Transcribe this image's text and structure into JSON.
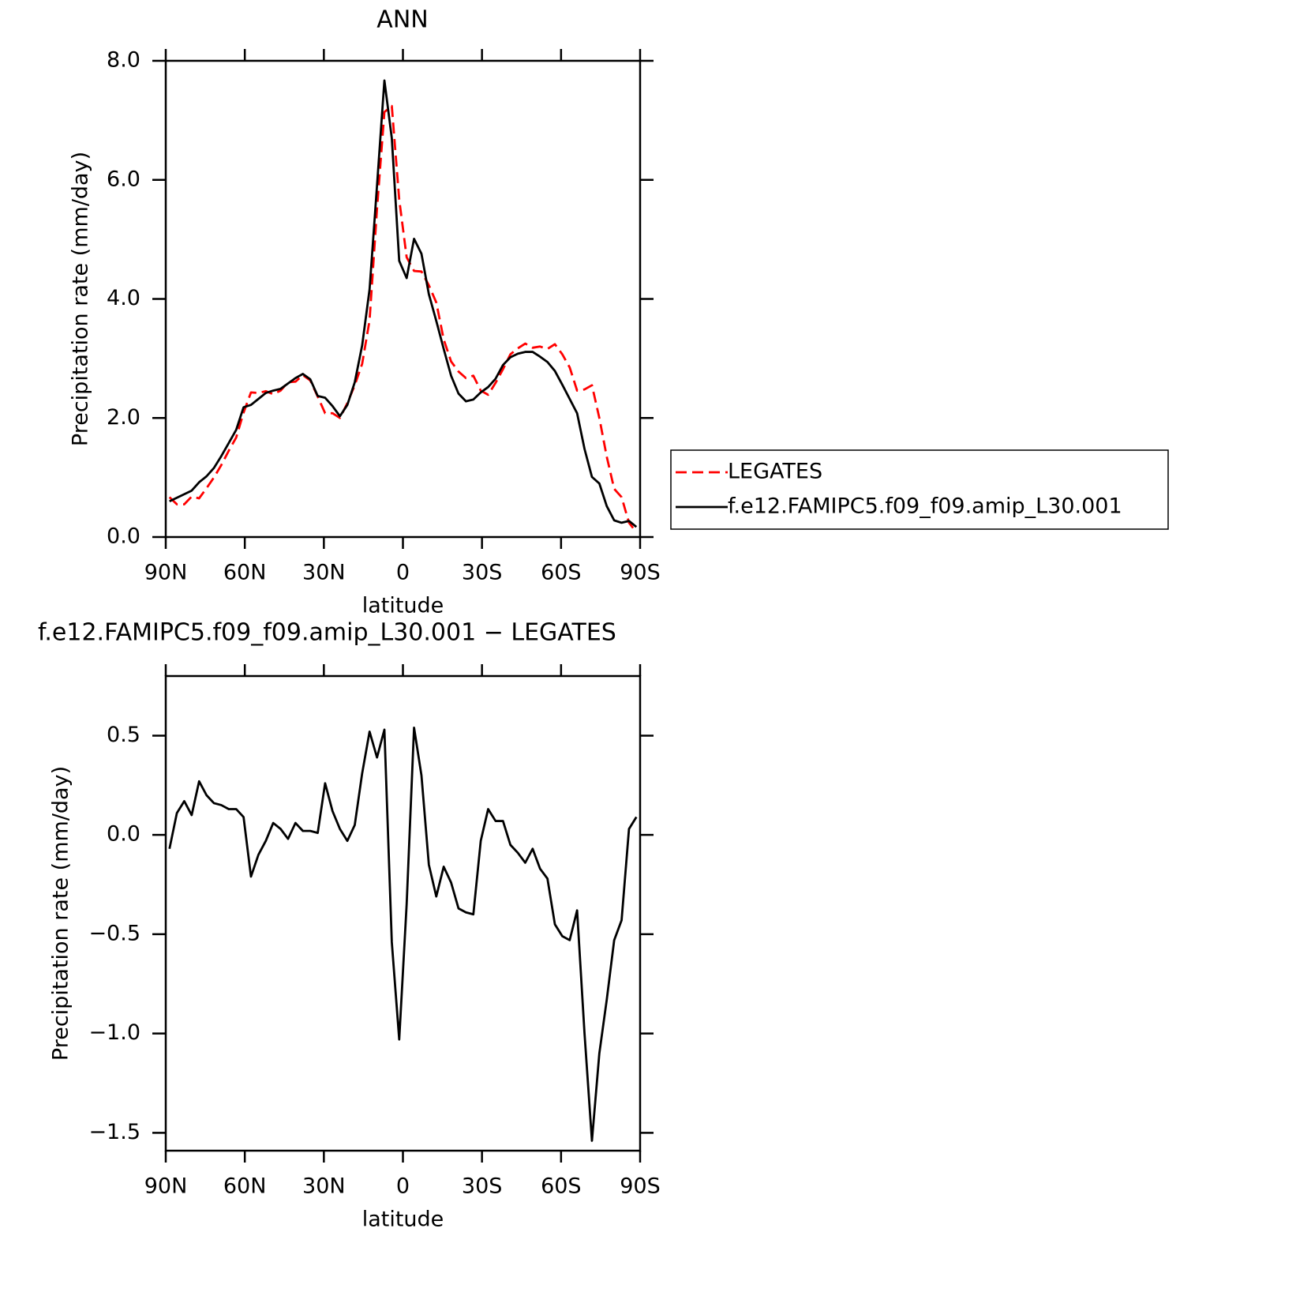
{
  "chart_data": [
    {
      "type": "line",
      "title": "ANN",
      "xlabel": "latitude",
      "ylabel": "Precipitation rate (mm/day)",
      "x": [
        88.59,
        85.78,
        82.97,
        80.16,
        77.34,
        74.53,
        71.72,
        68.91,
        66.09,
        63.28,
        60.47,
        57.66,
        54.84,
        52.03,
        49.22,
        46.41,
        43.59,
        40.78,
        37.97,
        35.16,
        32.34,
        29.53,
        26.72,
        23.91,
        21.09,
        18.28,
        15.47,
        12.66,
        9.84,
        7.03,
        4.22,
        1.41,
        -1.41,
        -4.22,
        -7.03,
        -9.84,
        -12.66,
        -15.47,
        -18.28,
        -21.09,
        -23.91,
        -26.72,
        -29.53,
        -32.34,
        -35.16,
        -37.97,
        -40.78,
        -43.59,
        -46.41,
        -49.22,
        -52.03,
        -54.84,
        -57.66,
        -60.47,
        -63.28,
        -66.09,
        -68.91,
        -71.72,
        -74.53,
        -77.34,
        -80.16,
        -82.97,
        -85.78,
        -88.59
      ],
      "series": [
        {
          "name": "LEGATES",
          "color": "#ff0000",
          "linestyle": "dashed",
          "values": [
            0.67,
            0.55,
            0.55,
            0.68,
            0.65,
            0.82,
            1.0,
            1.21,
            1.45,
            1.67,
            2.09,
            2.43,
            2.42,
            2.45,
            2.4,
            2.46,
            2.6,
            2.61,
            2.72,
            2.63,
            2.36,
            2.08,
            2.08,
            2.0,
            2.25,
            2.55,
            2.91,
            3.64,
            5.51,
            7.14,
            7.24,
            5.67,
            4.7,
            4.47,
            4.46,
            4.23,
            3.94,
            3.32,
            2.95,
            2.78,
            2.67,
            2.71,
            2.46,
            2.39,
            2.59,
            2.82,
            3.07,
            3.17,
            3.25,
            3.18,
            3.2,
            3.16,
            3.24,
            3.07,
            2.85,
            2.46,
            2.48,
            2.55,
            2.0,
            1.35,
            0.81,
            0.67,
            0.24,
            0.08
          ]
        },
        {
          "name": "f.e12.FAMIPC5.f09_f09.amip_L30.001",
          "color": "#000000",
          "linestyle": "solid",
          "values": [
            0.6,
            0.66,
            0.72,
            0.78,
            0.92,
            1.02,
            1.16,
            1.36,
            1.58,
            1.8,
            2.18,
            2.22,
            2.32,
            2.42,
            2.46,
            2.49,
            2.58,
            2.67,
            2.74,
            2.65,
            2.37,
            2.34,
            2.2,
            2.03,
            2.22,
            2.6,
            3.22,
            4.16,
            5.9,
            7.67,
            6.7,
            4.64,
            4.35,
            5.01,
            4.76,
            4.08,
            3.63,
            3.16,
            2.71,
            2.41,
            2.28,
            2.31,
            2.43,
            2.52,
            2.66,
            2.89,
            3.02,
            3.08,
            3.11,
            3.11,
            3.03,
            2.94,
            2.79,
            2.56,
            2.32,
            2.08,
            1.48,
            1.01,
            0.9,
            0.52,
            0.28,
            0.24,
            0.27,
            0.17
          ]
        }
      ],
      "xlim": [
        90,
        -90
      ],
      "xticks": [
        {
          "value": 90,
          "label": "90N"
        },
        {
          "value": 60,
          "label": "60N"
        },
        {
          "value": 30,
          "label": "30N"
        },
        0,
        {
          "value": -30,
          "label": "30S"
        },
        {
          "value": -60,
          "label": "60S"
        },
        {
          "value": -90,
          "label": "90S"
        }
      ],
      "ylim": [
        0,
        8
      ],
      "yticks": [
        {
          "value": 0,
          "label": "0.0"
        },
        {
          "value": 2,
          "label": "2.0"
        },
        {
          "value": 4,
          "label": "4.0"
        },
        {
          "value": 6,
          "label": "6.0"
        },
        {
          "value": 8,
          "label": "8.0"
        }
      ],
      "legend": "right"
    },
    {
      "type": "line",
      "title": "f.e12.FAMIPC5.f09_f09.amip_L30.001 − LEGATES",
      "xlabel": "latitude",
      "ylabel": "Precipitation rate (mm/day)",
      "x": [
        88.59,
        85.78,
        82.97,
        80.16,
        77.34,
        74.53,
        71.72,
        68.91,
        66.09,
        63.28,
        60.47,
        57.66,
        54.84,
        52.03,
        49.22,
        46.41,
        43.59,
        40.78,
        37.97,
        35.16,
        32.34,
        29.53,
        26.72,
        23.91,
        21.09,
        18.28,
        15.47,
        12.66,
        9.84,
        7.03,
        4.22,
        1.41,
        -1.41,
        -4.22,
        -7.03,
        -9.84,
        -12.66,
        -15.47,
        -18.28,
        -21.09,
        -23.91,
        -26.72,
        -29.53,
        -32.34,
        -35.16,
        -37.97,
        -40.78,
        -43.59,
        -46.41,
        -49.22,
        -52.03,
        -54.84,
        -57.66,
        -60.47,
        -63.28,
        -66.09,
        -68.91,
        -71.72,
        -74.53,
        -77.34,
        -80.16,
        -82.97,
        -85.78,
        -88.59
      ],
      "series": [
        {
          "color": "#000000",
          "linestyle": "solid",
          "values": [
            -0.07,
            0.11,
            0.17,
            0.1,
            0.27,
            0.2,
            0.16,
            0.15,
            0.13,
            0.13,
            0.09,
            -0.21,
            -0.1,
            -0.03,
            0.06,
            0.03,
            -0.02,
            0.06,
            0.02,
            0.02,
            0.01,
            0.26,
            0.12,
            0.03,
            -0.03,
            0.05,
            0.31,
            0.52,
            0.39,
            0.53,
            -0.54,
            -1.03,
            -0.35,
            0.54,
            0.3,
            -0.15,
            -0.31,
            -0.16,
            -0.24,
            -0.37,
            -0.39,
            -0.4,
            -0.03,
            0.13,
            0.07,
            0.07,
            -0.05,
            -0.09,
            -0.14,
            -0.07,
            -0.17,
            -0.22,
            -0.45,
            -0.51,
            -0.53,
            -0.38,
            -1.0,
            -1.54,
            -1.1,
            -0.83,
            -0.53,
            -0.43,
            0.03,
            0.09
          ]
        }
      ],
      "xlim": [
        90,
        -90
      ],
      "xticks": [
        {
          "value": 90,
          "label": "90N"
        },
        {
          "value": 60,
          "label": "60N"
        },
        {
          "value": 30,
          "label": "30N"
        },
        0,
        {
          "value": -30,
          "label": "30S"
        },
        {
          "value": -60,
          "label": "60S"
        },
        {
          "value": -90,
          "label": "90S"
        }
      ],
      "ylim": [
        -1.59,
        0.8
      ],
      "yticks": [
        {
          "value": -1.5,
          "label": "−1.5"
        },
        {
          "value": -1.0,
          "label": "−1.0"
        },
        {
          "value": -0.5,
          "label": "−0.5"
        },
        {
          "value": 0,
          "label": "0.0"
        },
        {
          "value": 0.5,
          "label": "0.5"
        }
      ]
    }
  ]
}
